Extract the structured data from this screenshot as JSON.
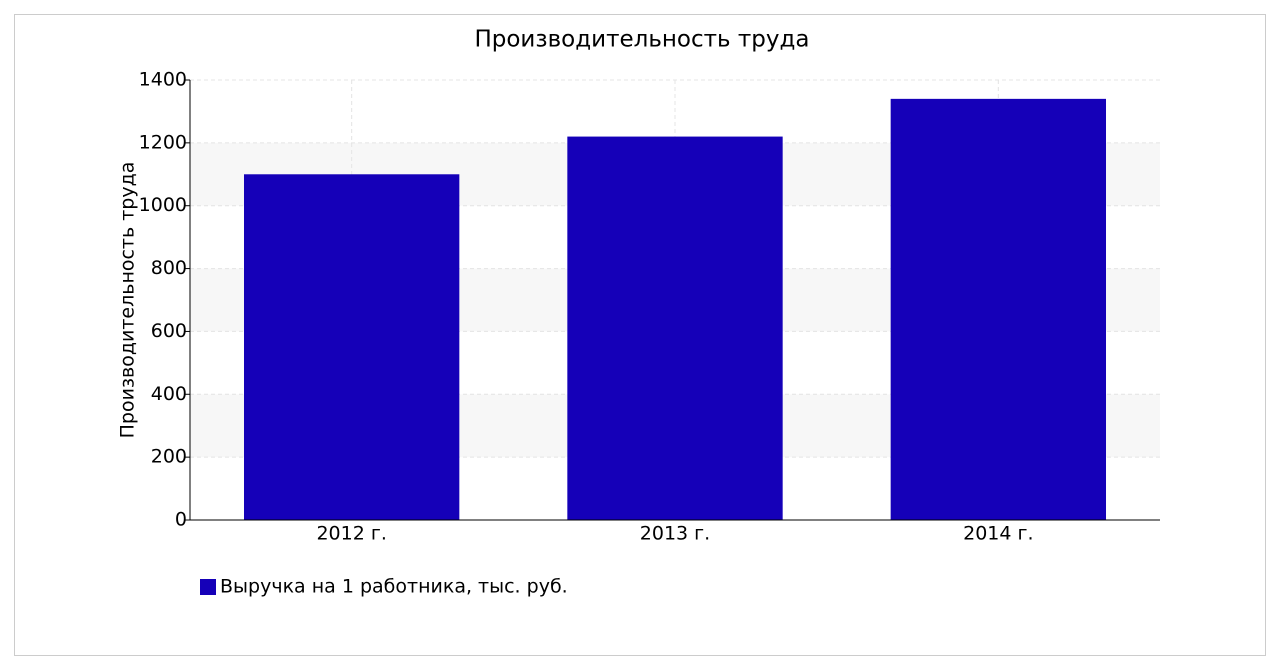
{
  "chart_data": {
    "type": "bar",
    "title": "Производительность труда",
    "y_label": "Производительность труда",
    "categories": [
      "2012 г.",
      "2013 г.",
      "2014 г."
    ],
    "series": [
      {
        "name": "Выручка на 1 работника, тыс. руб.",
        "color": "#1500b8",
        "values": [
          1100,
          1220,
          1340
        ]
      }
    ],
    "ylim": [
      0,
      1400
    ],
    "yticks": [
      0,
      200,
      400,
      600,
      800,
      1000,
      1200,
      1400
    ],
    "grid": true,
    "legend": "bottom-left"
  }
}
